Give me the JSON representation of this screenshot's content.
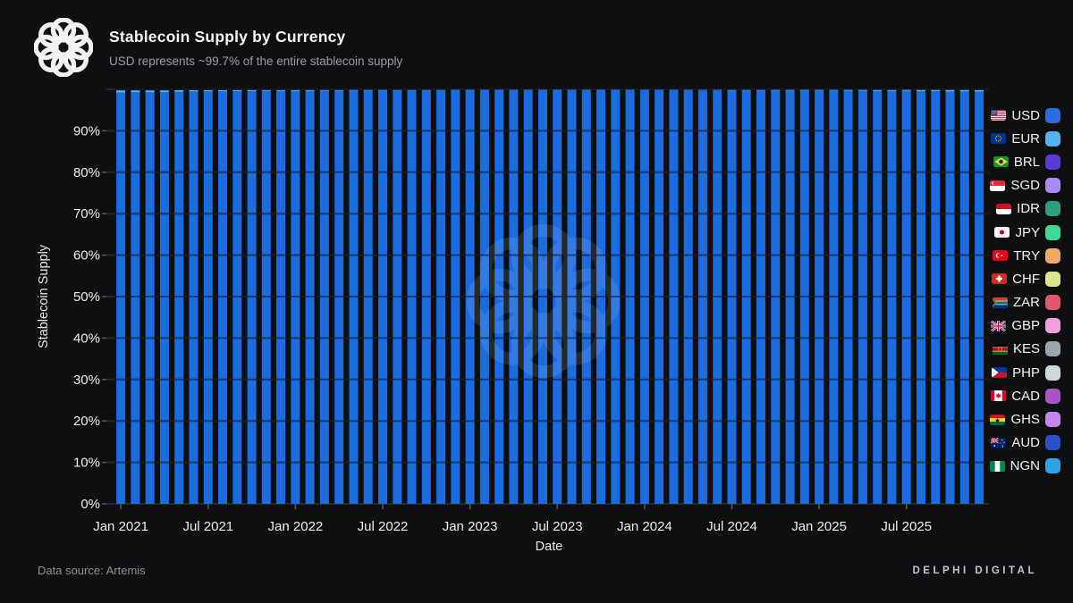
{
  "header": {
    "title": "Stablecoin Supply by Currency",
    "subtitle": "USD represents ~99.7% of the entire stablecoin supply"
  },
  "footer": {
    "source": "Data source: Artemis",
    "brand": "DELPHI DIGITAL"
  },
  "colors": {
    "background": "#0e0f11",
    "bar_usd": "#1b6ce0",
    "bar_eur_cap": "#55b1f0",
    "gridline": "#26282d",
    "tick_text": "#eceef0",
    "subtitle_text": "#9b9da4"
  },
  "legend": {
    "items": [
      {
        "code": "USD",
        "flag": "us",
        "color": "#2b6ce4"
      },
      {
        "code": "EUR",
        "flag": "eu",
        "color": "#55b2f2"
      },
      {
        "code": "BRL",
        "flag": "br",
        "color": "#5a3bd4"
      },
      {
        "code": "SGD",
        "flag": "sg",
        "color": "#a78bfa"
      },
      {
        "code": "IDR",
        "flag": "id",
        "color": "#2aa17e"
      },
      {
        "code": "JPY",
        "flag": "jp",
        "color": "#3fd996"
      },
      {
        "code": "TRY",
        "flag": "tr",
        "color": "#f2a860"
      },
      {
        "code": "CHF",
        "flag": "ch",
        "color": "#dce48c"
      },
      {
        "code": "ZAR",
        "flag": "za",
        "color": "#e4566e"
      },
      {
        "code": "GBP",
        "flag": "gb",
        "color": "#f2a0dc"
      },
      {
        "code": "KES",
        "flag": "ke",
        "color": "#9aa6ac"
      },
      {
        "code": "PHP",
        "flag": "ph",
        "color": "#ccd8da"
      },
      {
        "code": "CAD",
        "flag": "ca",
        "color": "#a854c8"
      },
      {
        "code": "GHS",
        "flag": "gh",
        "color": "#c584f0"
      },
      {
        "code": "AUD",
        "flag": "au",
        "color": "#2c50cc"
      },
      {
        "code": "NGN",
        "flag": "ng",
        "color": "#2ea3ec"
      }
    ]
  },
  "chart_data": {
    "type": "bar",
    "stacked": true,
    "percent": true,
    "title": "Stablecoin Supply by Currency",
    "xlabel": "Date",
    "ylabel": "Stablecoin Supply",
    "ylim": [
      0,
      100
    ],
    "grid": true,
    "legend_position": "right",
    "ytick_labels": [
      "0%",
      "10%",
      "20%",
      "30%",
      "40%",
      "50%",
      "60%",
      "70%",
      "80%",
      "90%"
    ],
    "xtick_labels": [
      "Jan 2021",
      "Jul 2021",
      "Jan 2022",
      "Jul 2022",
      "Jan 2023",
      "Jul 2023",
      "Jan 2024",
      "Jul 2024",
      "Jan 2025",
      "Jul 2025"
    ],
    "x": [
      "Jan 2021",
      "Feb 2021",
      "Mar 2021",
      "Apr 2021",
      "May 2021",
      "Jun 2021",
      "Jul 2021",
      "Aug 2021",
      "Sep 2021",
      "Oct 2021",
      "Nov 2021",
      "Dec 2021",
      "Jan 2022",
      "Feb 2022",
      "Mar 2022",
      "Apr 2022",
      "May 2022",
      "Jun 2022",
      "Jul 2022",
      "Aug 2022",
      "Sep 2022",
      "Oct 2022",
      "Nov 2022",
      "Dec 2022",
      "Jan 2023",
      "Feb 2023",
      "Mar 2023",
      "Apr 2023",
      "May 2023",
      "Jun 2023",
      "Jul 2023",
      "Aug 2023",
      "Sep 2023",
      "Oct 2023",
      "Nov 2023",
      "Dec 2023",
      "Jan 2024",
      "Feb 2024",
      "Mar 2024",
      "Apr 2024",
      "May 2024",
      "Jun 2024",
      "Jul 2024",
      "Aug 2024",
      "Sep 2024",
      "Oct 2024",
      "Nov 2024",
      "Dec 2024",
      "Jan 2025",
      "Feb 2025",
      "Mar 2025",
      "Apr 2025",
      "May 2025",
      "Jun 2025",
      "Jul 2025",
      "Aug 2025",
      "Sep 2025",
      "Oct 2025",
      "Nov 2025",
      "Dec 2025"
    ],
    "series": [
      {
        "name": "USD",
        "color": "#1b6ce0",
        "values": [
          99.25,
          99.3,
          99.3,
          99.35,
          99.4,
          99.45,
          99.5,
          99.5,
          99.55,
          99.55,
          99.6,
          99.6,
          99.6,
          99.6,
          99.65,
          99.65,
          99.7,
          99.7,
          99.7,
          99.75,
          99.75,
          99.75,
          99.75,
          99.8,
          99.8,
          99.8,
          99.8,
          99.8,
          99.8,
          99.8,
          99.8,
          99.8,
          99.8,
          99.8,
          99.8,
          99.8,
          99.8,
          99.8,
          99.8,
          99.75,
          99.75,
          99.75,
          99.7,
          99.7,
          99.7,
          99.7,
          99.7,
          99.7,
          99.7,
          99.7,
          99.65,
          99.65,
          99.6,
          99.6,
          99.6,
          99.55,
          99.55,
          99.5,
          99.5,
          99.45
        ]
      },
      {
        "name": "EUR",
        "color": "#55b1f0",
        "values": [
          0.5,
          0.45,
          0.45,
          0.4,
          0.4,
          0.35,
          0.3,
          0.3,
          0.3,
          0.3,
          0.25,
          0.25,
          0.25,
          0.25,
          0.2,
          0.2,
          0.2,
          0.2,
          0.2,
          0.15,
          0.15,
          0.15,
          0.15,
          0.15,
          0.15,
          0.15,
          0.15,
          0.15,
          0.15,
          0.15,
          0.15,
          0.15,
          0.15,
          0.15,
          0.15,
          0.15,
          0.15,
          0.15,
          0.15,
          0.2,
          0.2,
          0.2,
          0.2,
          0.2,
          0.2,
          0.25,
          0.25,
          0.25,
          0.25,
          0.25,
          0.3,
          0.3,
          0.3,
          0.3,
          0.35,
          0.35,
          0.35,
          0.4,
          0.4,
          0.4
        ]
      }
    ]
  }
}
